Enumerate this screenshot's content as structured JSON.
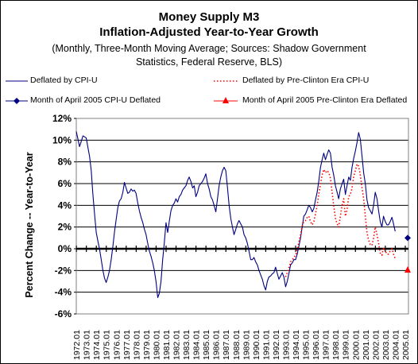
{
  "chart_data": {
    "type": "line",
    "title": "Money Supply M3",
    "subtitle": "Inflation-Adjusted Year-to-Year Growth",
    "note_line1": "(Monthly, Three-Month Moving Average; Sources: Shadow Government",
    "note_line2": "Statistics, Federal Reserve, BLS)",
    "ylabel": "Percent Change -- Year-to-Year",
    "xlabel": "",
    "ylim": [
      -6,
      12
    ],
    "yticks": [
      "12%",
      "10%",
      "8%",
      "6%",
      "4%",
      "2%",
      "0%",
      "-2%",
      "-4%",
      "-6%"
    ],
    "xticks": [
      "1972.01",
      "1973.01",
      "1974.01",
      "1975.01",
      "1976.01",
      "1977.01",
      "1978.01",
      "1979.01",
      "1980.01",
      "1981.01",
      "1982.01",
      "1983.01",
      "1984.01",
      "1985.01",
      "1986.01",
      "1987.01",
      "1988.01",
      "1989.01",
      "1990.01",
      "1991.01",
      "1992.01",
      "1993.01",
      "1994.01",
      "1995.01",
      "1996.01",
      "1997.01",
      "1998.01",
      "1999.01",
      "2000.01",
      "2001.01",
      "2002.01",
      "2003.01",
      "2004.01",
      "2005.01"
    ],
    "xlim": [
      1972.0,
      2005.33
    ],
    "grid": true,
    "legend_placement": "top",
    "legend": {
      "cpi": "Deflated by CPI-U",
      "pre": "Deflated by Pre-Clinton Era CPI-U",
      "april_cpi": "Month of April 2005 CPI-U Deflated",
      "april_pre": "Month of April 2005 Pre-Clinton Era Deflated"
    },
    "colors": {
      "cpi": "#000080",
      "pre": "#ff0000",
      "april_cpi": "#000080",
      "april_pre": "#ff0000"
    },
    "series": [
      {
        "name": "Deflated by CPI-U",
        "style": "solid",
        "points": [
          [
            1972.0,
            10.8
          ],
          [
            1972.17,
            10.1
          ],
          [
            1972.33,
            9.4
          ],
          [
            1972.5,
            9.9
          ],
          [
            1972.67,
            10.4
          ],
          [
            1972.83,
            10.3
          ],
          [
            1973.0,
            10.2
          ],
          [
            1973.17,
            9.3
          ],
          [
            1973.33,
            8.5
          ],
          [
            1973.5,
            7.2
          ],
          [
            1973.67,
            5.0
          ],
          [
            1973.83,
            3.2
          ],
          [
            1974.0,
            1.5
          ],
          [
            1974.17,
            0.7
          ],
          [
            1974.33,
            0.0
          ],
          [
            1974.5,
            -1.0
          ],
          [
            1974.67,
            -2.0
          ],
          [
            1974.83,
            -2.7
          ],
          [
            1975.0,
            -3.1
          ],
          [
            1975.17,
            -2.6
          ],
          [
            1975.33,
            -2.0
          ],
          [
            1975.5,
            -1.0
          ],
          [
            1975.67,
            0.2
          ],
          [
            1975.83,
            1.5
          ],
          [
            1976.0,
            2.7
          ],
          [
            1976.17,
            3.8
          ],
          [
            1976.33,
            4.4
          ],
          [
            1976.5,
            4.6
          ],
          [
            1976.67,
            5.2
          ],
          [
            1976.83,
            6.1
          ],
          [
            1977.0,
            5.6
          ],
          [
            1977.17,
            5.1
          ],
          [
            1977.33,
            5.2
          ],
          [
            1977.5,
            5.5
          ],
          [
            1977.67,
            5.3
          ],
          [
            1977.83,
            5.4
          ],
          [
            1978.0,
            5.1
          ],
          [
            1978.17,
            4.2
          ],
          [
            1978.33,
            3.5
          ],
          [
            1978.5,
            2.9
          ],
          [
            1978.67,
            2.4
          ],
          [
            1978.83,
            1.8
          ],
          [
            1979.0,
            1.3
          ],
          [
            1979.17,
            0.5
          ],
          [
            1979.33,
            -0.2
          ],
          [
            1979.5,
            -0.7
          ],
          [
            1979.67,
            -1.3
          ],
          [
            1979.83,
            -2.0
          ],
          [
            1980.0,
            -3.0
          ],
          [
            1980.17,
            -4.5
          ],
          [
            1980.33,
            -4.1
          ],
          [
            1980.5,
            -3.0
          ],
          [
            1980.67,
            -1.0
          ],
          [
            1980.83,
            0.5
          ],
          [
            1981.0,
            2.4
          ],
          [
            1981.17,
            1.5
          ],
          [
            1981.33,
            2.5
          ],
          [
            1981.5,
            3.5
          ],
          [
            1981.67,
            4.0
          ],
          [
            1981.83,
            4.2
          ],
          [
            1982.0,
            4.6
          ],
          [
            1982.17,
            4.3
          ],
          [
            1982.33,
            4.8
          ],
          [
            1982.5,
            5.0
          ],
          [
            1982.67,
            5.4
          ],
          [
            1982.83,
            5.6
          ],
          [
            1983.0,
            5.8
          ],
          [
            1983.17,
            6.3
          ],
          [
            1983.33,
            6.6
          ],
          [
            1983.5,
            6.2
          ],
          [
            1983.67,
            5.6
          ],
          [
            1983.83,
            5.8
          ],
          [
            1984.0,
            4.8
          ],
          [
            1984.17,
            5.2
          ],
          [
            1984.33,
            5.8
          ],
          [
            1984.5,
            6.0
          ],
          [
            1984.67,
            6.2
          ],
          [
            1984.83,
            6.5
          ],
          [
            1985.0,
            6.9
          ],
          [
            1985.17,
            6.0
          ],
          [
            1985.33,
            5.5
          ],
          [
            1985.5,
            4.8
          ],
          [
            1985.67,
            4.5
          ],
          [
            1985.83,
            4.0
          ],
          [
            1986.0,
            3.4
          ],
          [
            1986.17,
            4.6
          ],
          [
            1986.33,
            5.8
          ],
          [
            1986.5,
            6.6
          ],
          [
            1986.67,
            7.2
          ],
          [
            1986.83,
            7.5
          ],
          [
            1987.0,
            7.2
          ],
          [
            1987.17,
            5.6
          ],
          [
            1987.33,
            4.0
          ],
          [
            1987.5,
            2.8
          ],
          [
            1987.67,
            2.0
          ],
          [
            1987.83,
            1.3
          ],
          [
            1988.0,
            1.8
          ],
          [
            1988.17,
            2.3
          ],
          [
            1988.33,
            2.6
          ],
          [
            1988.5,
            2.3
          ],
          [
            1988.67,
            2.0
          ],
          [
            1988.83,
            1.3
          ],
          [
            1989.0,
            1.0
          ],
          [
            1989.17,
            0.5
          ],
          [
            1989.33,
            -0.2
          ],
          [
            1989.5,
            -1.0
          ],
          [
            1989.67,
            -1.0
          ],
          [
            1989.83,
            -0.8
          ],
          [
            1990.0,
            -1.2
          ],
          [
            1990.17,
            -1.5
          ],
          [
            1990.33,
            -2.0
          ],
          [
            1990.5,
            -2.4
          ],
          [
            1990.67,
            -2.8
          ],
          [
            1990.83,
            -3.4
          ],
          [
            1991.0,
            -3.8
          ],
          [
            1991.17,
            -3.0
          ],
          [
            1991.33,
            -2.6
          ],
          [
            1991.5,
            -2.5
          ],
          [
            1991.67,
            -2.3
          ],
          [
            1991.83,
            -2.2
          ],
          [
            1992.0,
            -1.7
          ],
          [
            1992.17,
            -2.3
          ],
          [
            1992.33,
            -2.8
          ],
          [
            1992.5,
            -2.5
          ],
          [
            1992.67,
            -2.2
          ],
          [
            1992.83,
            -2.6
          ],
          [
            1993.0,
            -3.5
          ],
          [
            1993.17,
            -3.0
          ],
          [
            1993.33,
            -2.3
          ],
          [
            1993.5,
            -1.5
          ],
          [
            1993.67,
            -1.3
          ],
          [
            1993.83,
            -1.0
          ],
          [
            1994.0,
            -1.0
          ],
          [
            1994.17,
            -0.5
          ],
          [
            1994.33,
            0.2
          ],
          [
            1994.5,
            1.0
          ],
          [
            1994.67,
            2.0
          ],
          [
            1994.83,
            3.0
          ],
          [
            1995.0,
            3.2
          ],
          [
            1995.17,
            3.6
          ],
          [
            1995.33,
            4.0
          ],
          [
            1995.5,
            3.8
          ],
          [
            1995.67,
            3.4
          ],
          [
            1995.83,
            3.7
          ],
          [
            1996.0,
            4.5
          ],
          [
            1996.17,
            5.2
          ],
          [
            1996.33,
            6.2
          ],
          [
            1996.5,
            7.5
          ],
          [
            1996.67,
            8.2
          ],
          [
            1996.83,
            8.8
          ],
          [
            1997.0,
            8.2
          ],
          [
            1997.17,
            8.7
          ],
          [
            1997.33,
            9.1
          ],
          [
            1997.5,
            8.8
          ],
          [
            1997.67,
            7.5
          ],
          [
            1997.83,
            6.8
          ],
          [
            1998.0,
            5.8
          ],
          [
            1998.17,
            5.2
          ],
          [
            1998.33,
            4.6
          ],
          [
            1998.5,
            5.5
          ],
          [
            1998.67,
            6.0
          ],
          [
            1998.83,
            6.4
          ],
          [
            1999.0,
            5.0
          ],
          [
            1999.17,
            5.8
          ],
          [
            1999.33,
            6.6
          ],
          [
            1999.5,
            6.3
          ],
          [
            1999.67,
            7.5
          ],
          [
            1999.83,
            8.3
          ],
          [
            2000.0,
            9.0
          ],
          [
            2000.17,
            9.8
          ],
          [
            2000.33,
            10.7
          ],
          [
            2000.5,
            10.1
          ],
          [
            2000.67,
            8.5
          ],
          [
            2000.83,
            7.0
          ],
          [
            2001.0,
            6.0
          ],
          [
            2001.17,
            4.5
          ],
          [
            2001.33,
            3.8
          ],
          [
            2001.5,
            3.5
          ],
          [
            2001.67,
            3.2
          ],
          [
            2001.83,
            4.0
          ],
          [
            2002.0,
            5.2
          ],
          [
            2002.17,
            4.6
          ],
          [
            2002.33,
            3.5
          ],
          [
            2002.5,
            2.5
          ],
          [
            2002.67,
            2.0
          ],
          [
            2002.83,
            3.0
          ],
          [
            2003.0,
            2.5
          ],
          [
            2003.17,
            2.2
          ],
          [
            2003.33,
            2.2
          ],
          [
            2003.5,
            2.5
          ],
          [
            2003.67,
            2.9
          ],
          [
            2003.83,
            2.3
          ],
          [
            2004.0,
            1.6
          ]
        ]
      },
      {
        "name": "Deflated by Pre-Clinton Era CPI-U",
        "style": "dotted",
        "points": [
          [
            1993.0,
            -2.6
          ],
          [
            1993.17,
            -2.2
          ],
          [
            1993.33,
            -1.8
          ],
          [
            1993.5,
            -1.2
          ],
          [
            1993.67,
            -1.0
          ],
          [
            1993.83,
            -0.8
          ],
          [
            1994.0,
            -0.6
          ],
          [
            1994.17,
            -0.1
          ],
          [
            1994.33,
            0.6
          ],
          [
            1994.5,
            1.3
          ],
          [
            1994.67,
            2.1
          ],
          [
            1994.83,
            2.5
          ],
          [
            1995.0,
            2.6
          ],
          [
            1995.17,
            2.9
          ],
          [
            1995.33,
            3.0
          ],
          [
            1995.5,
            2.5
          ],
          [
            1995.67,
            2.2
          ],
          [
            1995.83,
            2.5
          ],
          [
            1996.0,
            3.2
          ],
          [
            1996.17,
            4.0
          ],
          [
            1996.33,
            5.0
          ],
          [
            1996.5,
            6.0
          ],
          [
            1996.67,
            6.8
          ],
          [
            1996.83,
            7.3
          ],
          [
            1997.0,
            7.0
          ],
          [
            1997.17,
            7.2
          ],
          [
            1997.33,
            7.0
          ],
          [
            1997.5,
            6.5
          ],
          [
            1997.67,
            5.2
          ],
          [
            1997.83,
            4.0
          ],
          [
            1998.0,
            2.8
          ],
          [
            1998.17,
            2.3
          ],
          [
            1998.33,
            2.0
          ],
          [
            1998.5,
            3.0
          ],
          [
            1998.67,
            4.0
          ],
          [
            1998.83,
            4.6
          ],
          [
            1999.0,
            3.0
          ],
          [
            1999.17,
            3.6
          ],
          [
            1999.33,
            4.8
          ],
          [
            1999.5,
            5.0
          ],
          [
            1999.67,
            5.6
          ],
          [
            1999.83,
            6.6
          ],
          [
            2000.0,
            7.2
          ],
          [
            2000.17,
            7.8
          ],
          [
            2000.33,
            7.6
          ],
          [
            2000.5,
            6.8
          ],
          [
            2000.67,
            5.6
          ],
          [
            2000.83,
            4.6
          ],
          [
            2001.0,
            3.0
          ],
          [
            2001.17,
            1.5
          ],
          [
            2001.33,
            0.8
          ],
          [
            2001.5,
            0.4
          ],
          [
            2001.67,
            0.3
          ],
          [
            2001.83,
            1.0
          ],
          [
            2002.0,
            2.0
          ],
          [
            2002.17,
            1.3
          ],
          [
            2002.33,
            0.5
          ],
          [
            2002.5,
            -0.4
          ],
          [
            2002.67,
            -0.6
          ],
          [
            2002.83,
            0.1
          ],
          [
            2003.0,
            -0.2
          ],
          [
            2003.17,
            -0.5
          ],
          [
            2003.33,
            -0.5
          ],
          [
            2003.5,
            -0.2
          ],
          [
            2003.67,
            0.0
          ],
          [
            2003.83,
            -0.5
          ],
          [
            2004.0,
            -0.9
          ]
        ]
      }
    ],
    "markers": [
      {
        "name": "Month of April 2005 CPI-U Deflated",
        "x": 2005.25,
        "y": 1.0,
        "shape": "diamond",
        "color": "#000080"
      },
      {
        "name": "Month of April 2005 Pre-Clinton Era Deflated",
        "x": 2005.25,
        "y": -1.9,
        "shape": "triangle",
        "color": "#ff0000"
      }
    ]
  }
}
